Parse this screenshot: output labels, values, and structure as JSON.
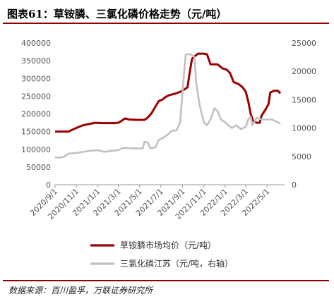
{
  "title": "图表61：草铵膦、三氯化磷价格走势（元/吨）",
  "source": "数据来源：百川盈孚，万联证券研究所",
  "colors": {
    "primary": "#9b0000",
    "secondary": "#c0c0c0",
    "axis": "#999999",
    "text": "#555555"
  },
  "chart_data": {
    "type": "line",
    "title": "图表61：草铵膦、三氯化磷价格走势（元/吨）",
    "x_ticks": [
      "2020/9/1",
      "2020/11/1",
      "2021/1/1",
      "2021/3/1",
      "2021/5/1",
      "2021/7/1",
      "2021/9/1",
      "2021/11/1",
      "2022/1/1",
      "2022/3/1",
      "2022/5/1"
    ],
    "ylim_left": [
      0,
      400000
    ],
    "yticks_left": [
      "0",
      "50000",
      "100000",
      "150000",
      "200000",
      "250000",
      "300000",
      "350000",
      "400000"
    ],
    "ylim_right": [
      0,
      25000
    ],
    "yticks_right": [
      "0",
      "5000",
      "10000",
      "15000",
      "20000",
      "25000"
    ],
    "grid": false,
    "legend_position": "bottom",
    "series": [
      {
        "name": "草铵膦市场均价（元/吨）",
        "axis": "left",
        "points": [
          [
            "2020-09-01",
            150000
          ],
          [
            "2020-10-10",
            150000
          ],
          [
            "2020-10-20",
            155000
          ],
          [
            "2020-11-05",
            162000
          ],
          [
            "2020-11-20",
            168000
          ],
          [
            "2020-12-10",
            172000
          ],
          [
            "2020-12-25",
            175000
          ],
          [
            "2021-01-15",
            174000
          ],
          [
            "2021-02-15",
            174000
          ],
          [
            "2021-03-01",
            175000
          ],
          [
            "2021-03-10",
            180000
          ],
          [
            "2021-03-20",
            187000
          ],
          [
            "2021-04-01",
            184000
          ],
          [
            "2021-04-20",
            183000
          ],
          [
            "2021-05-15",
            183000
          ],
          [
            "2021-05-25",
            190000
          ],
          [
            "2021-06-05",
            203000
          ],
          [
            "2021-06-15",
            220000
          ],
          [
            "2021-06-25",
            236000
          ],
          [
            "2021-07-05",
            240000
          ],
          [
            "2021-07-15",
            248000
          ],
          [
            "2021-07-25",
            253000
          ],
          [
            "2021-08-10",
            257000
          ],
          [
            "2021-08-25",
            262000
          ],
          [
            "2021-09-05",
            268000
          ],
          [
            "2021-09-15",
            275000
          ],
          [
            "2021-09-22",
            320000
          ],
          [
            "2021-09-28",
            355000
          ],
          [
            "2021-10-05",
            362000
          ],
          [
            "2021-10-15",
            370000
          ],
          [
            "2021-11-01",
            370000
          ],
          [
            "2021-11-10",
            368000
          ],
          [
            "2021-11-20",
            340000
          ],
          [
            "2021-12-10",
            340000
          ],
          [
            "2021-12-25",
            328000
          ],
          [
            "2022-01-05",
            325000
          ],
          [
            "2022-01-15",
            315000
          ],
          [
            "2022-01-25",
            290000
          ],
          [
            "2022-02-10",
            283000
          ],
          [
            "2022-02-20",
            275000
          ],
          [
            "2022-03-01",
            262000
          ],
          [
            "2022-03-08",
            235000
          ],
          [
            "2022-03-15",
            200000
          ],
          [
            "2022-03-22",
            180000
          ],
          [
            "2022-04-01",
            175000
          ],
          [
            "2022-04-10",
            175000
          ],
          [
            "2022-04-15",
            195000
          ],
          [
            "2022-04-25",
            210000
          ],
          [
            "2022-05-05",
            227000
          ],
          [
            "2022-05-10",
            260000
          ],
          [
            "2022-05-20",
            265000
          ],
          [
            "2022-06-01",
            265000
          ],
          [
            "2022-06-08",
            258000
          ]
        ]
      },
      {
        "name": "三氯化磷江苏（元/吨，右轴）",
        "axis": "right",
        "points": [
          [
            "2020-09-01",
            4800
          ],
          [
            "2020-09-20",
            4800
          ],
          [
            "2020-10-01",
            5100
          ],
          [
            "2020-10-10",
            5500
          ],
          [
            "2020-11-01",
            5600
          ],
          [
            "2020-11-20",
            5800
          ],
          [
            "2020-12-10",
            6000
          ],
          [
            "2021-01-01",
            6100
          ],
          [
            "2021-01-20",
            5800
          ],
          [
            "2021-02-10",
            6000
          ],
          [
            "2021-03-01",
            6100
          ],
          [
            "2021-03-15",
            6500
          ],
          [
            "2021-04-15",
            6400
          ],
          [
            "2021-05-10",
            6400
          ],
          [
            "2021-05-15",
            7600
          ],
          [
            "2021-05-25",
            7400
          ],
          [
            "2021-06-01",
            6400
          ],
          [
            "2021-06-15",
            6600
          ],
          [
            "2021-06-25",
            7900
          ],
          [
            "2021-07-05",
            8200
          ],
          [
            "2021-07-20",
            8800
          ],
          [
            "2021-08-01",
            9500
          ],
          [
            "2021-08-15",
            9600
          ],
          [
            "2021-08-25",
            11000
          ],
          [
            "2021-09-05",
            19500
          ],
          [
            "2021-09-10",
            23000
          ],
          [
            "2021-09-25",
            23000
          ],
          [
            "2021-10-05",
            22500
          ],
          [
            "2021-10-10",
            18000
          ],
          [
            "2021-10-20",
            14000
          ],
          [
            "2021-11-01",
            11000
          ],
          [
            "2021-11-10",
            10500
          ],
          [
            "2021-11-20",
            11500
          ],
          [
            "2021-12-01",
            13500
          ],
          [
            "2021-12-10",
            13000
          ],
          [
            "2021-12-20",
            11500
          ],
          [
            "2022-01-01",
            11000
          ],
          [
            "2022-01-10",
            10500
          ],
          [
            "2022-01-20",
            10000
          ],
          [
            "2022-02-01",
            10500
          ],
          [
            "2022-02-15",
            9800
          ],
          [
            "2022-03-01",
            10200
          ],
          [
            "2022-03-08",
            11500
          ],
          [
            "2022-03-15",
            12000
          ],
          [
            "2022-03-20",
            10500
          ],
          [
            "2022-04-01",
            11800
          ],
          [
            "2022-04-15",
            11500
          ],
          [
            "2022-05-01",
            11500
          ],
          [
            "2022-05-15",
            11500
          ],
          [
            "2022-05-25",
            11200
          ],
          [
            "2022-06-01",
            11000
          ],
          [
            "2022-06-08",
            10800
          ]
        ]
      }
    ]
  }
}
